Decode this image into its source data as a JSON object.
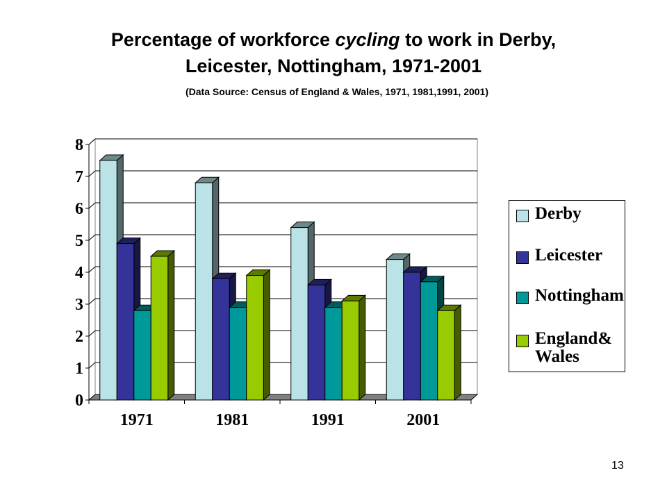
{
  "title": {
    "part1": "Percentage of workforce ",
    "emphasis": "cycling",
    "part2": " to work in Derby,",
    "line2": "Leicester, Nottingham, 1971-2001"
  },
  "subtitle": "(Data Source: Census of England & Wales, 1971, 1981,1991, 2001)",
  "page_number": "13",
  "chart_data": {
    "type": "bar",
    "title": "Percentage of workforce cycling to work in Derby, Leicester, Nottingham, 1971-2001",
    "xlabel": "",
    "ylabel": "",
    "categories": [
      "1971",
      "1981",
      "1991",
      "2001"
    ],
    "ylim": [
      0,
      8
    ],
    "yticks": [
      0,
      1,
      2,
      3,
      4,
      5,
      6,
      7,
      8
    ],
    "grid": true,
    "three_d": true,
    "legend_position": "right",
    "series": [
      {
        "name": "Derby",
        "color": "#b9e3e6",
        "values": [
          7.5,
          6.8,
          5.4,
          4.4
        ]
      },
      {
        "name": "Leicester",
        "color": "#333399",
        "values": [
          4.9,
          3.8,
          3.6,
          4.0
        ]
      },
      {
        "name": "Nottingham",
        "color": "#009999",
        "values": [
          2.8,
          2.9,
          2.9,
          3.7
        ]
      },
      {
        "name": "England& Wales",
        "color": "#99cc00",
        "values": [
          4.5,
          3.9,
          3.1,
          2.8
        ]
      }
    ]
  }
}
